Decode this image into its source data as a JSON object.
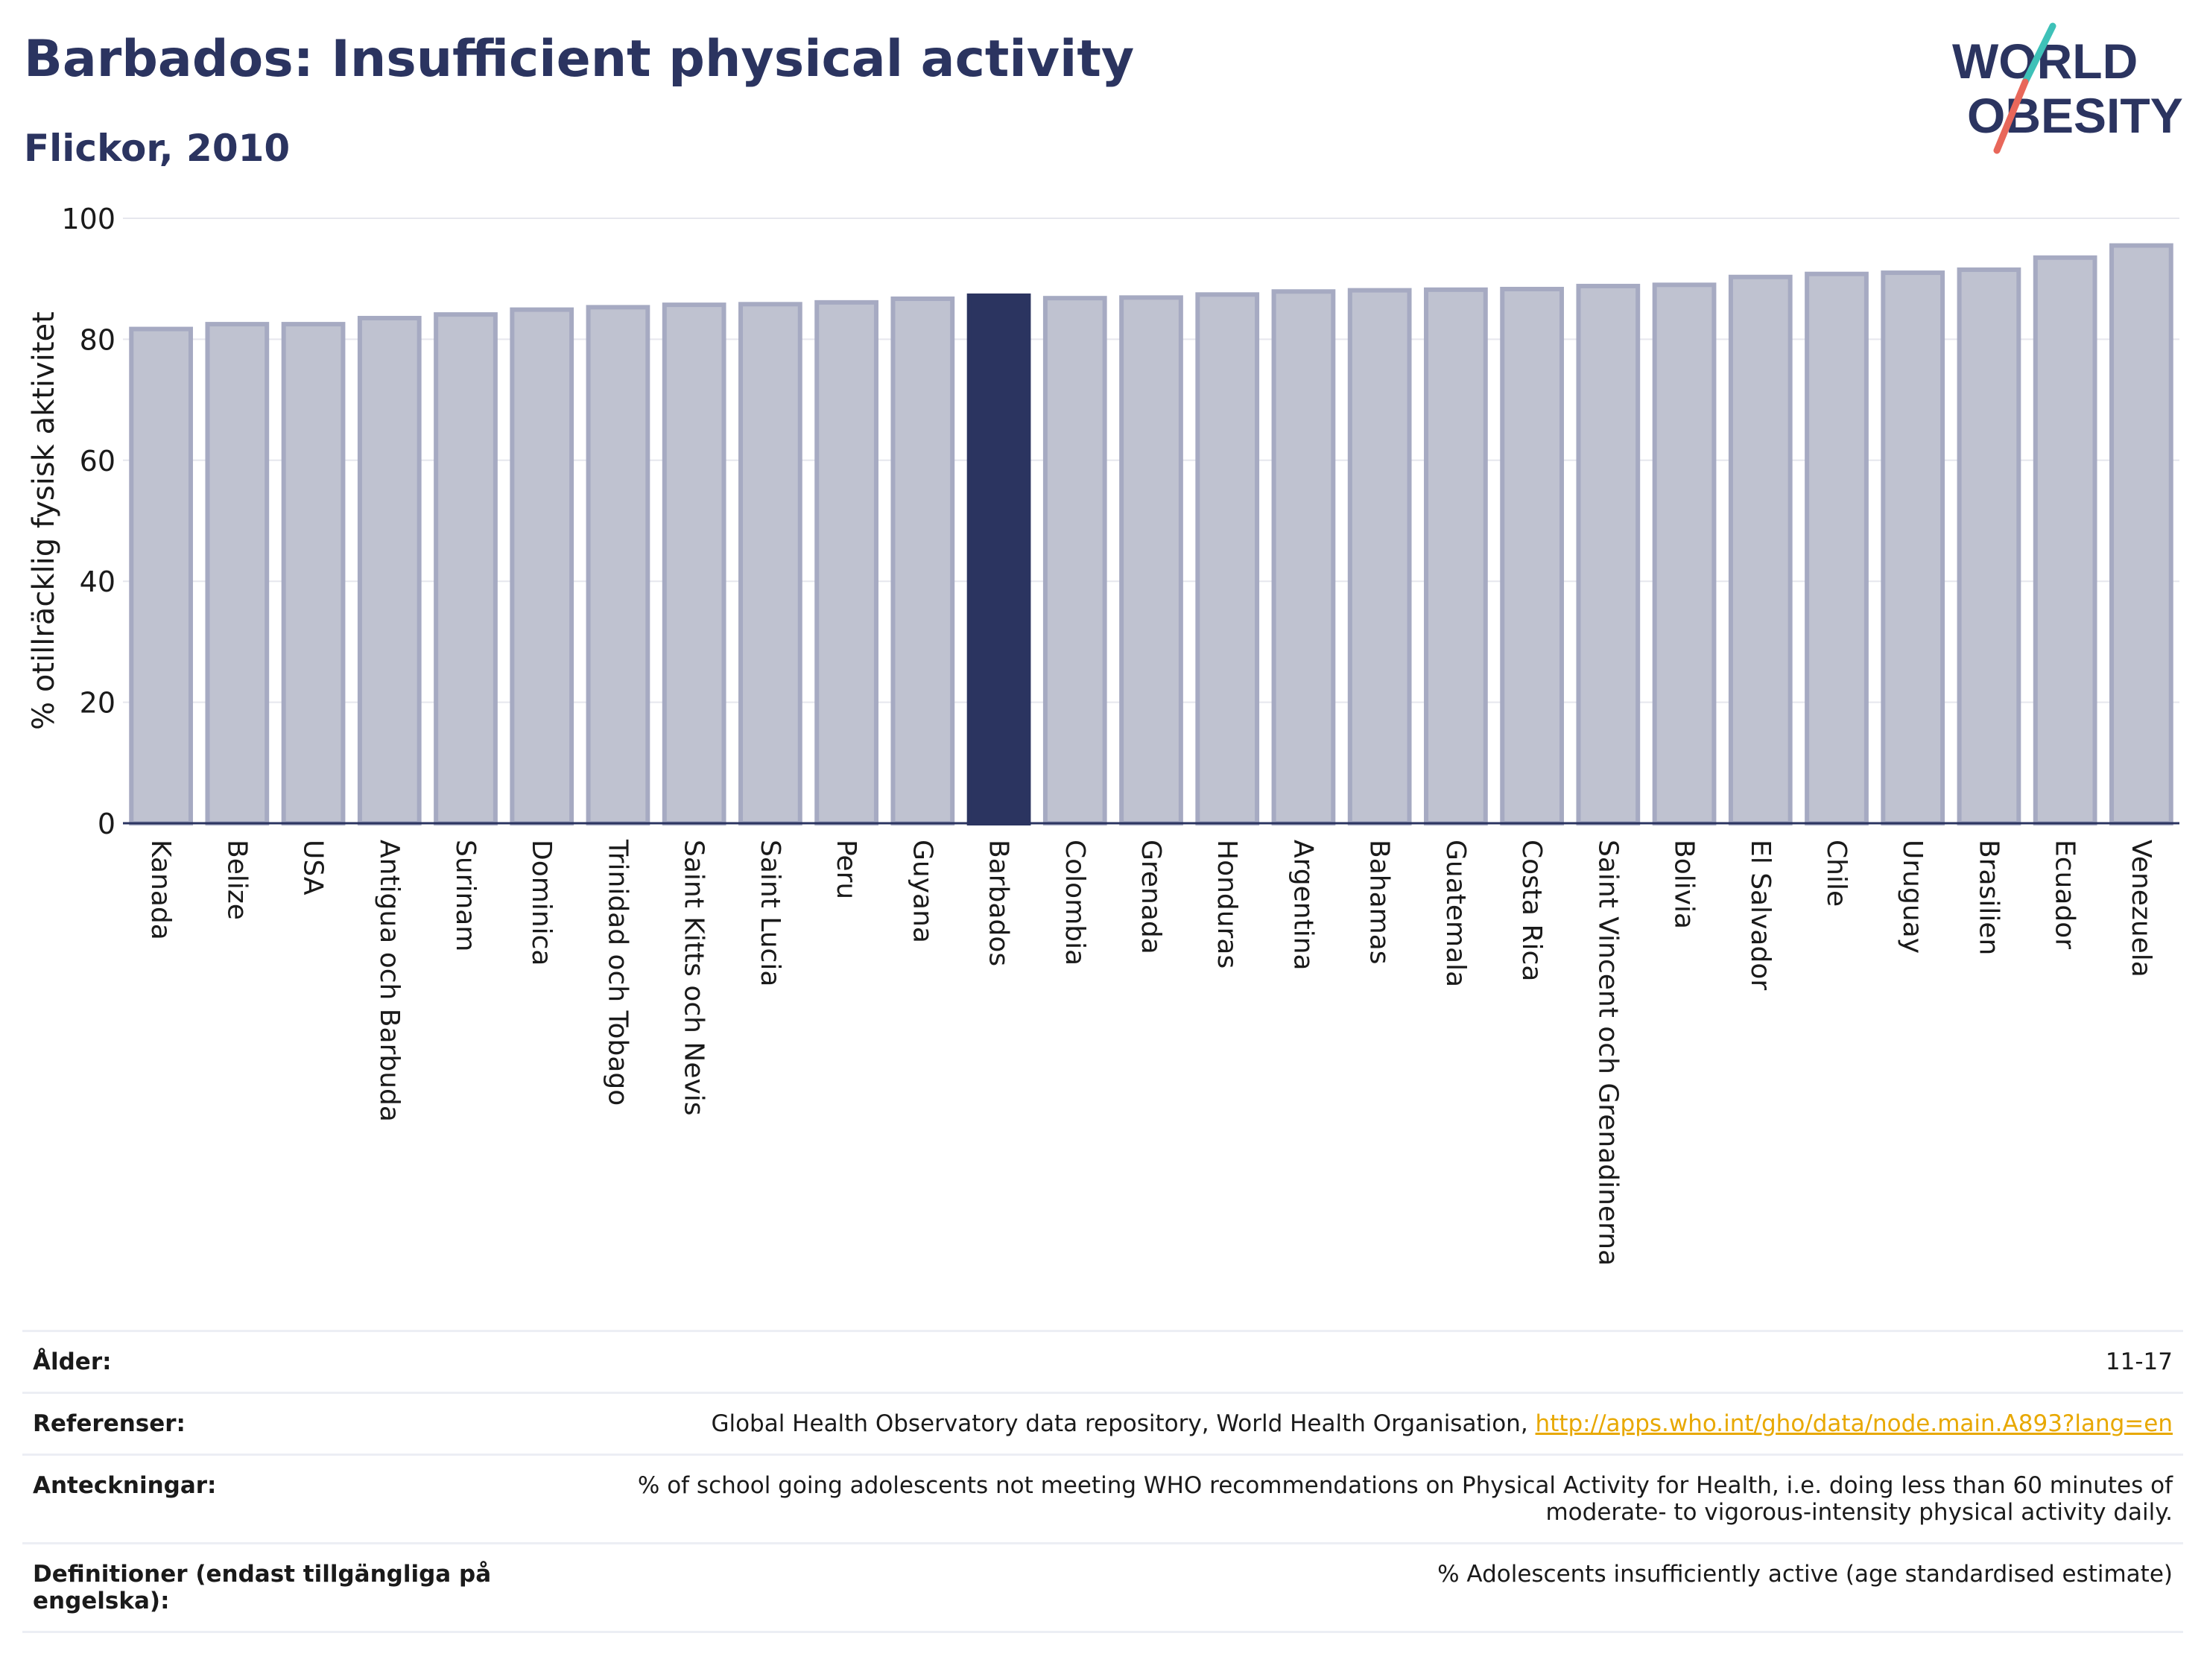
{
  "header": {
    "title": "Barbados: Insufficient physical activity",
    "subtitle": "Flickor, 2010"
  },
  "logo": {
    "line1": "WORLD",
    "line2": "OBESITY"
  },
  "colors": {
    "highlight": "#2b3460",
    "bar_fill": "#bfc2d0",
    "bar_stroke": "#a6aac2",
    "grid": "#e6e7ee",
    "logo_teal": "#3ec1b8",
    "logo_red": "#e8675a"
  },
  "chart_data": {
    "type": "bar",
    "title": "Barbados: Insufficient physical activity",
    "subtitle": "Flickor, 2010",
    "ylabel": "% otillräcklig fysisk aktivitet",
    "xlabel": "",
    "ylim": [
      0,
      100
    ],
    "yticks": [
      0,
      20,
      40,
      60,
      80,
      100
    ],
    "grid": true,
    "highlight": "Barbados",
    "categories": [
      "Kanada",
      "Belize",
      "USA",
      "Antigua och Barbuda",
      "Surinam",
      "Dominica",
      "Trinidad och Tobago",
      "Saint Kitts och Nevis",
      "Saint Lucia",
      "Peru",
      "Guyana",
      "Barbados",
      "Colombia",
      "Grenada",
      "Honduras",
      "Argentina",
      "Bahamas",
      "Guatemala",
      "Costa Rica",
      "Saint Vincent och Grenadinerna",
      "Bolivia",
      "El Salvador",
      "Chile",
      "Uruguay",
      "Brasilien",
      "Ecuador",
      "Venezuela"
    ],
    "values": [
      81.7,
      82.5,
      82.5,
      83.5,
      84.1,
      84.9,
      85.3,
      85.7,
      85.8,
      86.1,
      86.7,
      87.2,
      86.8,
      86.9,
      87.4,
      87.9,
      88.1,
      88.2,
      88.3,
      88.8,
      89.0,
      90.3,
      90.8,
      91.0,
      91.5,
      93.5,
      95.5
    ]
  },
  "meta": [
    {
      "label": "Ålder:",
      "value": "11-17"
    },
    {
      "label": "Referenser:",
      "value": "Global Health Observatory data repository, World Health Organisation, ",
      "link": "http://apps.who.int/gho/data/node.main.A893?lang=en"
    },
    {
      "label": "Anteckningar:",
      "value": "% of school going adolescents not meeting WHO recommendations on Physical Activity for Health, i.e. doing less than 60 minutes of moderate- to vigorous-intensity physical activity daily."
    },
    {
      "label": "Definitioner (endast tillgängliga på engelska):",
      "value": "% Adolescents insufficiently active (age standardised estimate)"
    }
  ]
}
